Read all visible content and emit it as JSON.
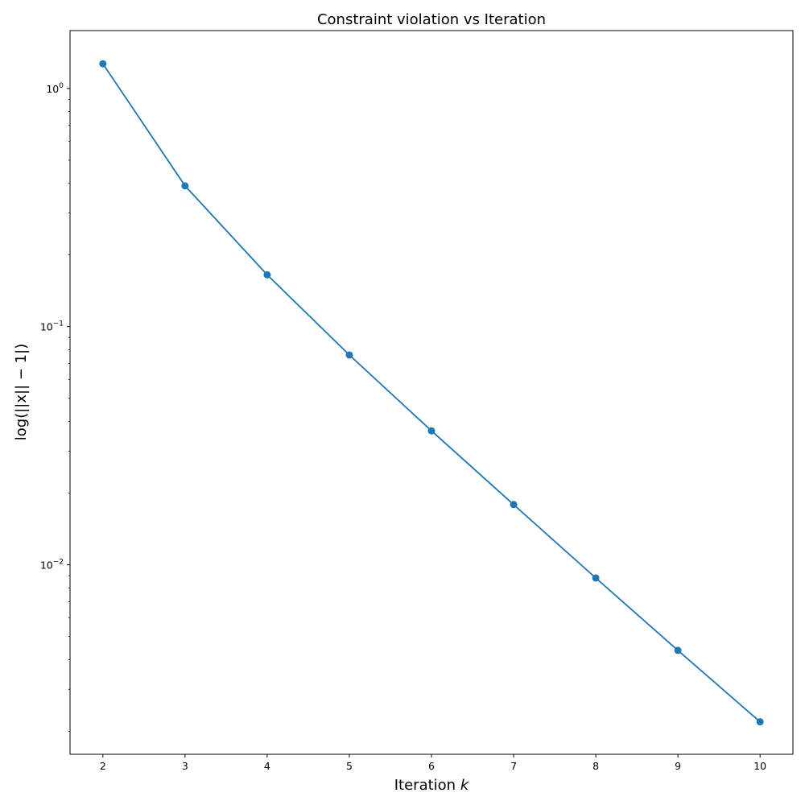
{
  "chart_data": {
    "type": "line",
    "title": "Constraint violation vs Iteration",
    "xlabel_text": "Iteration ",
    "xlabel_var": "k",
    "ylabel": "log(||x|| − 1|)",
    "x": [
      2,
      3,
      4,
      5,
      6,
      7,
      8,
      9,
      10
    ],
    "series": [
      {
        "values": [
          1.27,
          0.39,
          0.165,
          0.076,
          0.0365,
          0.0179,
          0.0088,
          0.00437,
          0.00219
        ],
        "color": "#1f77b4",
        "marker": "circle"
      }
    ],
    "xlim": [
      1.6,
      10.4
    ],
    "ylim": [
      0.0016,
      1.75
    ],
    "yscale": "log",
    "x_ticks": [
      "2",
      "3",
      "4",
      "5",
      "6",
      "7",
      "8",
      "9",
      "10"
    ],
    "y_ticks": [
      {
        "value": 1,
        "base": "10",
        "exp": "0"
      },
      {
        "value": 0.1,
        "base": "10",
        "exp": "−1"
      },
      {
        "value": 0.01,
        "base": "10",
        "exp": "−2"
      }
    ],
    "grid": false,
    "legend": "none"
  }
}
